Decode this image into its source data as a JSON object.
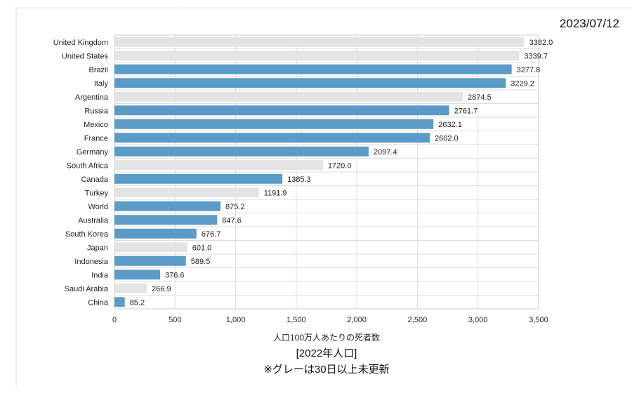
{
  "date": "2023/07/12",
  "xlabel": "人口100万人あたりの死者数",
  "subtitle1": "[2022年人口]",
  "subtitle2": "※グレーは30日以上未更新",
  "colors": {
    "updated": "#5b9bc8",
    "stale": "#e4e4e4",
    "grid": "#dddddd"
  },
  "chart_data": {
    "type": "bar",
    "orientation": "horizontal",
    "xlim": [
      0,
      3500
    ],
    "xticks": [
      0,
      500,
      1000,
      1500,
      2000,
      2500,
      3000,
      3500
    ],
    "xtick_labels": [
      "0",
      "500",
      "1,000",
      "1,500",
      "2,000",
      "2,500",
      "3,000",
      "3,500"
    ],
    "grid": true,
    "categories": [
      "United Kingdom",
      "United States",
      "Brazil",
      "Italy",
      "Argentina",
      "Russia",
      "Mexico",
      "France",
      "Germany",
      "South Africa",
      "Canada",
      "Turkey",
      "World",
      "Australia",
      "South Korea",
      "Japan",
      "Indonesia",
      "India",
      "Saudi Arabia",
      "China"
    ],
    "values": [
      3382.0,
      3339.7,
      3277.8,
      3229.2,
      2874.5,
      2761.7,
      2632.1,
      2602.0,
      2097.4,
      1720.0,
      1385.3,
      1191.9,
      875.2,
      847.6,
      676.7,
      601.0,
      589.5,
      376.6,
      266.9,
      85.2
    ],
    "value_labels": [
      "3382.0",
      "3339.7",
      "3277.8",
      "3229.2",
      "2874.5",
      "2761.7",
      "2632.1",
      "2602.0",
      "2097.4",
      "1720.0",
      "1385.3",
      "1191.9",
      "875.2",
      "847.6",
      "676.7",
      "601.0",
      "589.5",
      "376.6",
      "266.9",
      "85.2"
    ],
    "stale": [
      true,
      true,
      false,
      false,
      true,
      false,
      false,
      false,
      false,
      true,
      false,
      true,
      false,
      false,
      false,
      true,
      false,
      false,
      true,
      false
    ]
  }
}
